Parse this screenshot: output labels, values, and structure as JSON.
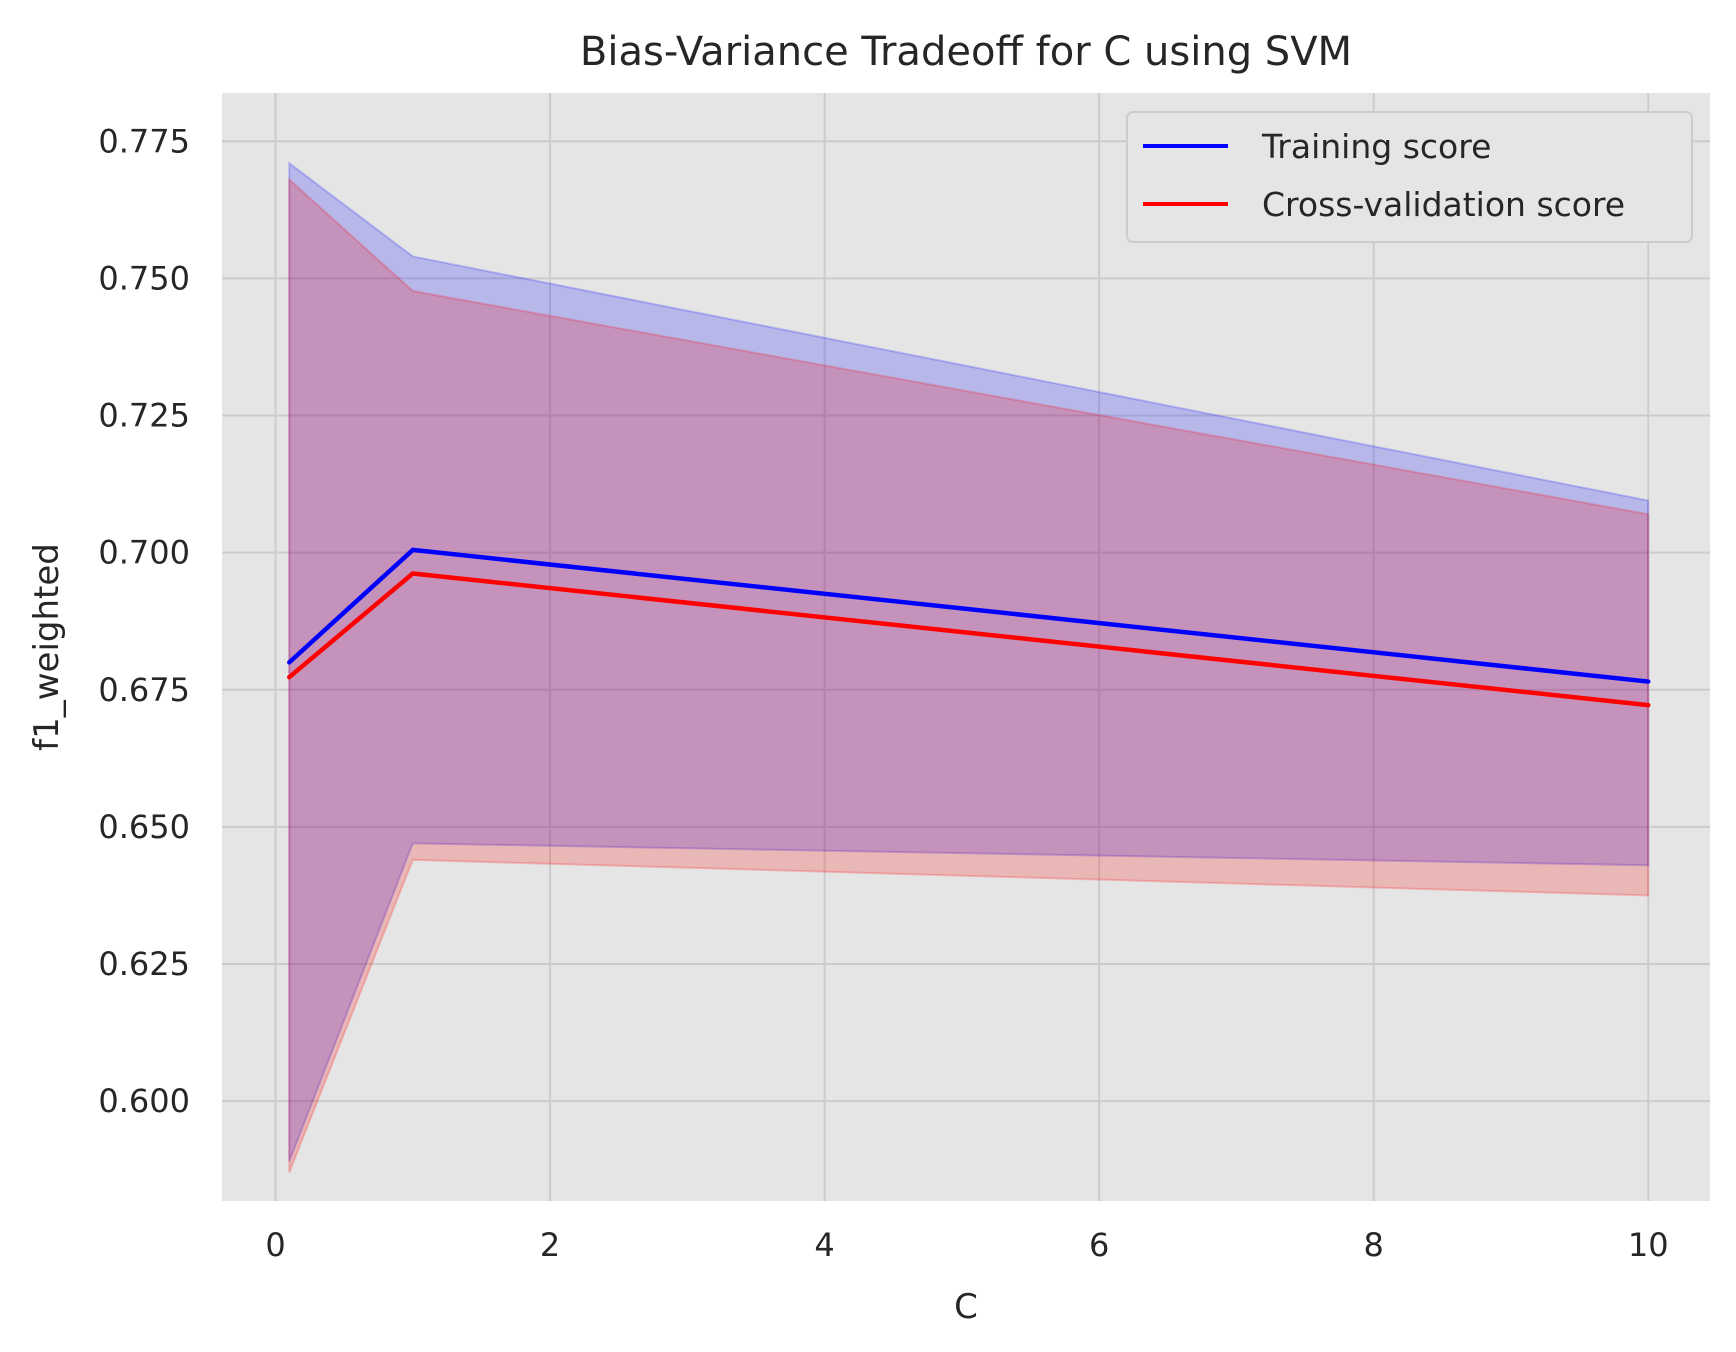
{
  "chart_data": {
    "type": "line",
    "title": "Bias-Variance Tradeoff for C using SVM",
    "xlabel": "C",
    "ylabel": "f1_weighted",
    "x": [
      0.1,
      1,
      10
    ],
    "xlim": [
      -0.39,
      10.45
    ],
    "ylim": [
      0.5818,
      0.7838
    ],
    "xticks": [
      0,
      2,
      4,
      6,
      8,
      10
    ],
    "xtick_labels": [
      "0",
      "2",
      "4",
      "6",
      "8",
      "10"
    ],
    "yticks": [
      0.6,
      0.625,
      0.65,
      0.675,
      0.7,
      0.725,
      0.75,
      0.775
    ],
    "ytick_labels": [
      "0.600",
      "0.625",
      "0.650",
      "0.675",
      "0.700",
      "0.725",
      "0.750",
      "0.775"
    ],
    "grid": true,
    "legend_position": "top-right",
    "series": [
      {
        "name": "Training score",
        "color": "#0000ff",
        "values": [
          0.68,
          0.7005,
          0.6765
        ],
        "band_lower": [
          0.589,
          0.647,
          0.643
        ],
        "band_upper": [
          0.771,
          0.754,
          0.7095
        ]
      },
      {
        "name": "Cross-validation score",
        "color": "#ff0000",
        "values": [
          0.6773,
          0.6962,
          0.6722
        ],
        "band_lower": [
          0.587,
          0.644,
          0.6375
        ],
        "band_upper": [
          0.768,
          0.7477,
          0.707
        ]
      }
    ],
    "colors": {
      "plot_background": "#e5e5e5",
      "grid": "#cccccc",
      "text": "#262626"
    }
  }
}
